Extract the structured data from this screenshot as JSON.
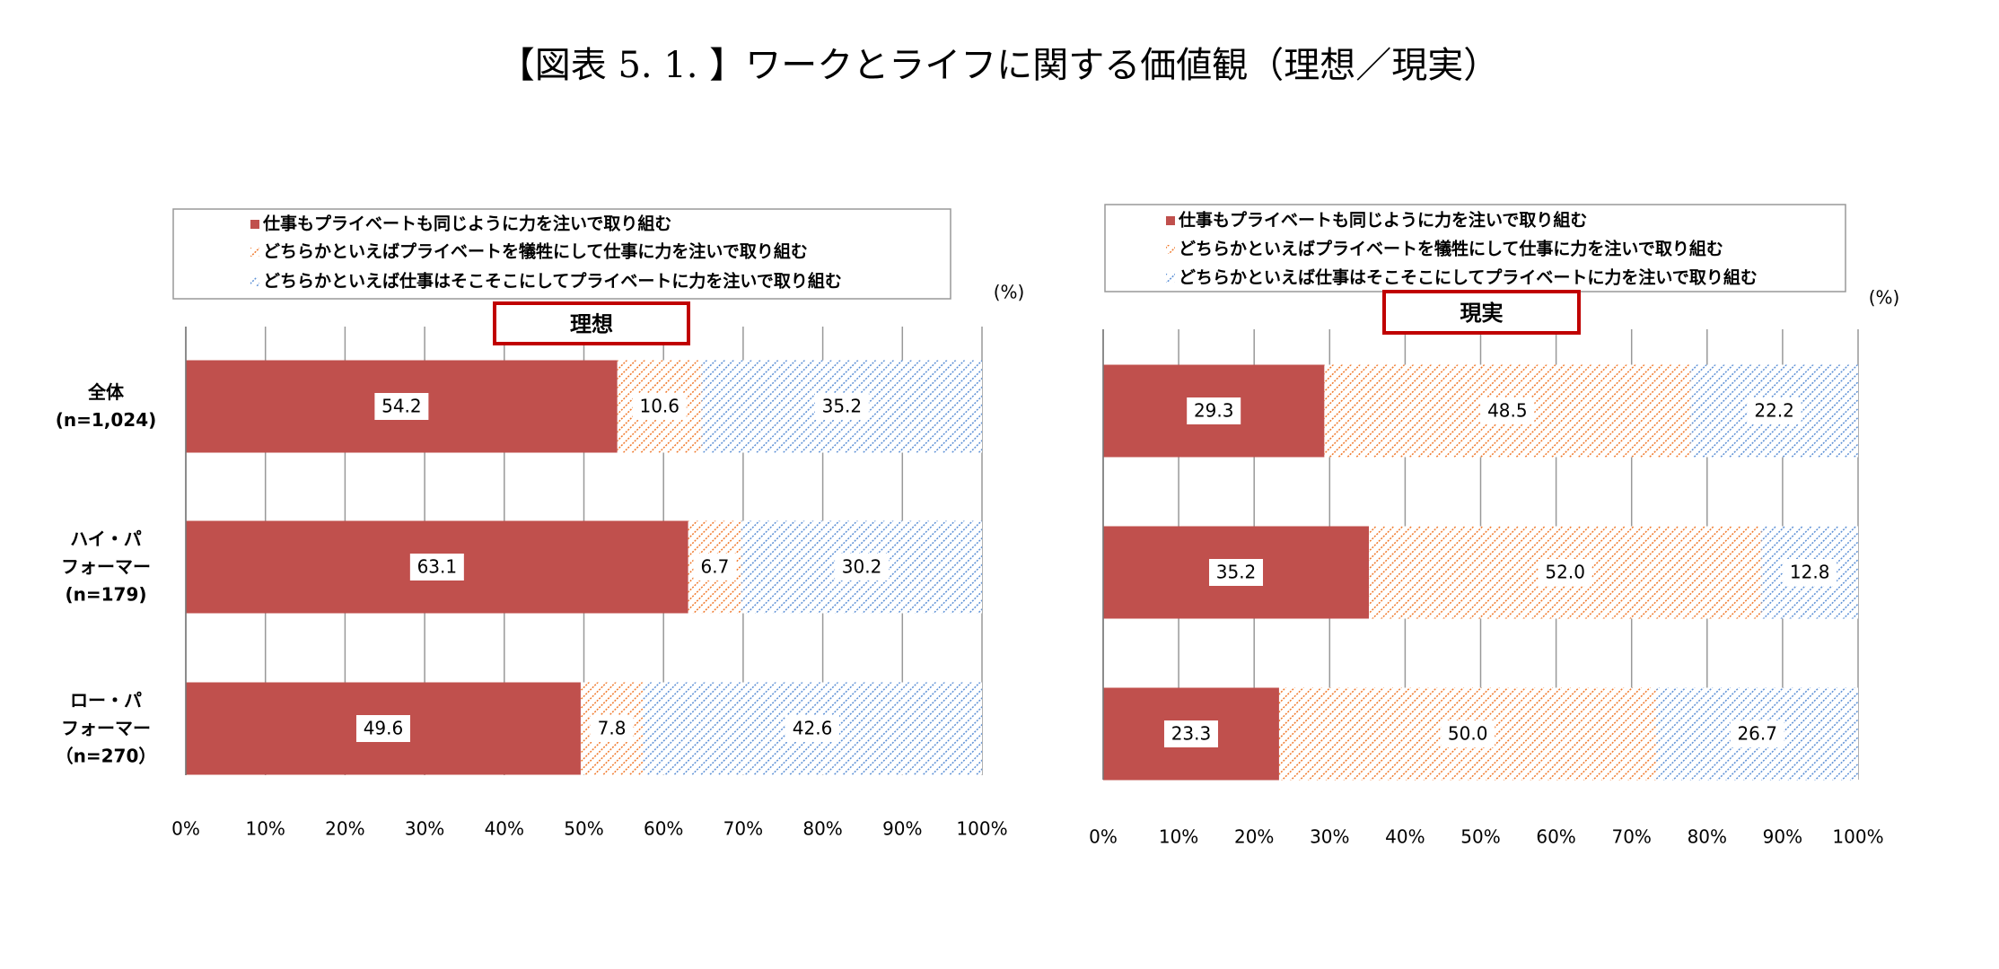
{
  "title": "【図表 5. 1. 】ワークとライフに関する価値観（理想／現実）",
  "chart_data": [
    {
      "type": "bar",
      "orientation": "horizontal",
      "stacked": true,
      "grid": true,
      "title": "理想",
      "unit": "(%)",
      "categories": [
        "全体\n(n=1,024)",
        "ハイ・パ\nフォーマー\n(n=179)",
        "ロー・パ\nフォーマー\n（n=270）"
      ],
      "series": [
        {
          "name": "仕事もプライベートも同じように力を注いで取り組む",
          "color": "#c0504d",
          "pattern": "solid",
          "values": [
            54.2,
            63.1,
            49.6
          ],
          "value_labels": [
            "54.2",
            "63.1",
            "49.6"
          ]
        },
        {
          "name": "どちらかといえばプライベートを犠牲にして仕事に力を注いで取り組む",
          "color": "#f0782a",
          "pattern": "hatch",
          "values": [
            10.6,
            6.7,
            7.8
          ],
          "value_labels": [
            "10.6",
            "6.7",
            "7.8"
          ]
        },
        {
          "name": "どちらかといえば仕事はそこそこにしてプライベートに力を注いで取り組む",
          "color": "#5b8fd5",
          "pattern": "hatch",
          "values": [
            35.2,
            30.2,
            42.6
          ],
          "value_labels": [
            "35.2",
            "30.2",
            "42.6"
          ]
        }
      ],
      "xlim": [
        0,
        100
      ],
      "xticks": [
        {
          "value": 0,
          "label": "0%"
        },
        {
          "value": 10,
          "label": "10%"
        },
        {
          "value": 20,
          "label": "20%"
        },
        {
          "value": 30,
          "label": "30%"
        },
        {
          "value": 40,
          "label": "40%"
        },
        {
          "value": 50,
          "label": "50%"
        },
        {
          "value": 60,
          "label": "60%"
        },
        {
          "value": 70,
          "label": "70%"
        },
        {
          "value": 80,
          "label": "80%"
        },
        {
          "value": 90,
          "label": "90%"
        },
        {
          "value": 100,
          "label": "100%"
        }
      ]
    },
    {
      "type": "bar",
      "orientation": "horizontal",
      "stacked": true,
      "grid": true,
      "title": "現実",
      "unit": "(%)",
      "series": [
        {
          "name": "仕事もプライベートも同じように力を注いで取り組む",
          "color": "#c0504d",
          "pattern": "solid",
          "values": [
            29.3,
            35.2,
            23.3
          ],
          "value_labels": [
            "29.3",
            "35.2",
            "23.3"
          ]
        },
        {
          "name": "どちらかといえばプライベートを犠牲にして仕事に力を注いで取り組む",
          "color": "#f0782a",
          "pattern": "hatch",
          "values": [
            48.5,
            52.0,
            50.0
          ],
          "value_labels": [
            "48.5",
            "52.0",
            "50.0"
          ]
        },
        {
          "name": "どちらかといえば仕事はそこそこにしてプライベートに力を注いで取り組む",
          "color": "#5b8fd5",
          "pattern": "hatch",
          "values": [
            22.2,
            12.8,
            26.7
          ],
          "value_labels": [
            "22.2",
            "12.8",
            "26.7"
          ]
        }
      ],
      "xlim": [
        0,
        100
      ],
      "xticks": [
        {
          "value": 0,
          "label": "0%"
        },
        {
          "value": 10,
          "label": "10%"
        },
        {
          "value": 20,
          "label": "20%"
        },
        {
          "value": 30,
          "label": "30%"
        },
        {
          "value": 40,
          "label": "40%"
        },
        {
          "value": 50,
          "label": "50%"
        },
        {
          "value": 60,
          "label": "60%"
        },
        {
          "value": 70,
          "label": "70%"
        },
        {
          "value": 80,
          "label": "80%"
        },
        {
          "value": 90,
          "label": "90%"
        },
        {
          "value": 100,
          "label": "100%"
        }
      ]
    }
  ]
}
